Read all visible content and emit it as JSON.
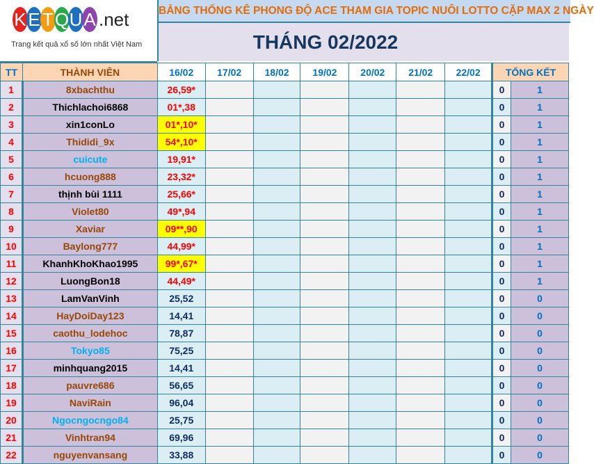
{
  "logo": {
    "letters": [
      "K",
      "E",
      "T",
      "Q",
      "U",
      "A"
    ],
    "letter_colors": [
      "#e52420",
      "#1f6fbf",
      "#f39c12",
      "#2aa84a",
      "#1f6fbf",
      "#8e44ad"
    ],
    "suffix": ".net",
    "tagline": "Trang kết quả xổ số lớn nhất Việt Nam"
  },
  "banner": "BẢNG THỐNG KÊ PHONG ĐỘ ACE THAM GIA TOPIC NUÔI LOTTO CẶP MAX 2 NGÀY",
  "month_title": "THÁNG 02/2022",
  "headers": {
    "tt": "TT",
    "member": "THÀNH VIÊN",
    "days": [
      "16/02",
      "17/02",
      "18/02",
      "19/02",
      "20/02",
      "21/02",
      "22/02"
    ],
    "total": "TỔNG KẾT"
  },
  "rows": [
    {
      "tt": "1",
      "name": "8xbachthu",
      "name_color": "brown",
      "d16": "26,59*",
      "hl": false,
      "hit": "0",
      "total": "1"
    },
    {
      "tt": "2",
      "name": "Thichlachoi6868",
      "name_color": "black",
      "d16": "01*,38",
      "hl": false,
      "hit": "0",
      "total": "1"
    },
    {
      "tt": "3",
      "name": "xin1conLo",
      "name_color": "black",
      "d16": "01*,10*",
      "hl": true,
      "hit": "0",
      "total": "1"
    },
    {
      "tt": "4",
      "name": "Thididi_9x",
      "name_color": "brown",
      "d16": "54*,10*",
      "hl": true,
      "hit": "0",
      "total": "1"
    },
    {
      "tt": "5",
      "name": "cuicute",
      "name_color": "cyan",
      "d16": "19,91*",
      "hl": false,
      "hit": "0",
      "total": "1"
    },
    {
      "tt": "6",
      "name": "hcuong888",
      "name_color": "brown",
      "d16": "23,32*",
      "hl": false,
      "hit": "0",
      "total": "1"
    },
    {
      "tt": "7",
      "name": "thịnh bùi 1111",
      "name_color": "black",
      "d16": "25,66*",
      "hl": false,
      "hit": "0",
      "total": "1"
    },
    {
      "tt": "8",
      "name": "Violet80",
      "name_color": "brown",
      "d16": "49*,94",
      "hl": false,
      "hit": "0",
      "total": "1"
    },
    {
      "tt": "9",
      "name": "Xaviar",
      "name_color": "brown",
      "d16": "09**,90",
      "hl": true,
      "hit": "0",
      "total": "1"
    },
    {
      "tt": "10",
      "name": "Baylong777",
      "name_color": "brown",
      "d16": "44,99*",
      "hl": false,
      "hit": "0",
      "total": "1"
    },
    {
      "tt": "11",
      "name": "KhanhKhoKhao1995",
      "name_color": "black",
      "d16": "99*,67*",
      "hl": true,
      "hit": "0",
      "total": "1"
    },
    {
      "tt": "12",
      "name": "LuongBon18",
      "name_color": "black",
      "d16": "44,49*",
      "hl": false,
      "hit": "0",
      "total": "1"
    },
    {
      "tt": "13",
      "name": "LamVanVinh",
      "name_color": "black",
      "d16": "25,52",
      "hl": false,
      "hit": "0",
      "total": "0"
    },
    {
      "tt": "14",
      "name": "HayDoiDay123",
      "name_color": "brown",
      "d16": "14,41",
      "hl": false,
      "hit": "0",
      "total": "0"
    },
    {
      "tt": "15",
      "name": "caothu_lodehoc",
      "name_color": "brown",
      "d16": "78,87",
      "hl": false,
      "hit": "0",
      "total": "0"
    },
    {
      "tt": "16",
      "name": "Tokyo85",
      "name_color": "cyan",
      "d16": "75,25",
      "hl": false,
      "hit": "0",
      "total": "0"
    },
    {
      "tt": "17",
      "name": "minhquang2015",
      "name_color": "black",
      "d16": "14,41",
      "hl": false,
      "hit": "0",
      "total": "0"
    },
    {
      "tt": "18",
      "name": "pauvre686",
      "name_color": "brown",
      "d16": "56,65",
      "hl": false,
      "hit": "0",
      "total": "0"
    },
    {
      "tt": "19",
      "name": "NaviRain",
      "name_color": "brown",
      "d16": "96,04",
      "hl": false,
      "hit": "0",
      "total": "0"
    },
    {
      "tt": "20",
      "name": "Ngocngocngo84",
      "name_color": "cyan",
      "d16": "25,75",
      "hl": false,
      "hit": "0",
      "total": "0"
    },
    {
      "tt": "21",
      "name": "Vinhtran94",
      "name_color": "brown",
      "d16": "69,96",
      "hl": false,
      "hit": "0",
      "total": "0"
    },
    {
      "tt": "22",
      "name": "nguyenvansang",
      "name_color": "brown",
      "d16": "33,88",
      "hl": false,
      "hit": "0",
      "total": "0"
    }
  ]
}
